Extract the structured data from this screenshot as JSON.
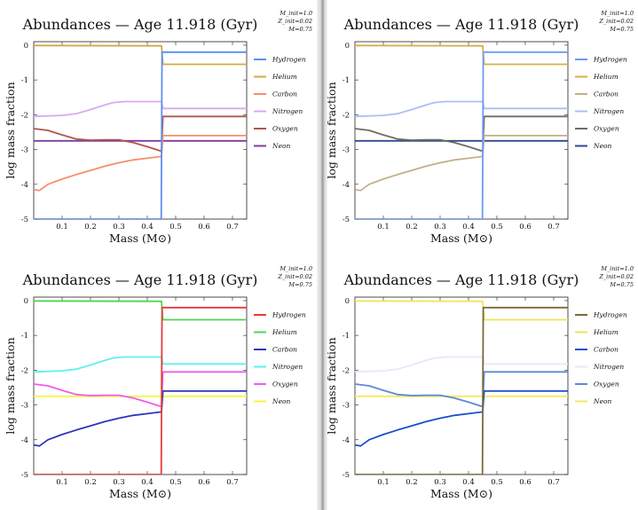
{
  "chart_data": [
    {
      "type": "line",
      "title": "Abundances — Age 11.918 (Gyr)",
      "xlabel": "Mass (M⊙)",
      "ylabel": "log mass fraction",
      "xlim": [
        0,
        0.75
      ],
      "ylim": [
        -5,
        0.1
      ],
      "xticks": [
        "0.1",
        "0.2",
        "0.3",
        "0.4",
        "0.5",
        "0.6",
        "0.7"
      ],
      "yticks": [
        "0",
        "-1",
        "-2",
        "-3",
        "-4",
        "-5"
      ],
      "meta": [
        "M_init=1.0",
        "Z_init=0.02",
        "M=0.75"
      ],
      "legend_position": "right",
      "series": [
        {
          "name": "Hydrogen",
          "color": "#5b8ff0"
        },
        {
          "name": "Helium",
          "color": "#d4a845"
        },
        {
          "name": "Carbon",
          "color": "#f4906c"
        },
        {
          "name": "Nitrogen",
          "color": "#d9a9f5"
        },
        {
          "name": "Oxygen",
          "color": "#b0554f"
        },
        {
          "name": "Neon",
          "color": "#7e3d9e"
        }
      ]
    },
    {
      "type": "line",
      "title": "Abundances — Age 11.918 (Gyr)",
      "xlabel": "Mass (M⊙)",
      "ylabel": "log mass fraction",
      "xlim": [
        0,
        0.75
      ],
      "ylim": [
        -5,
        0.1
      ],
      "xticks": [
        "0.1",
        "0.2",
        "0.3",
        "0.4",
        "0.5",
        "0.6",
        "0.7"
      ],
      "yticks": [
        "0",
        "-1",
        "-2",
        "-3",
        "-4",
        "-5"
      ],
      "meta": [
        "M_init=1.0",
        "Z_init=0.02",
        "M=0.75"
      ],
      "legend_position": "right",
      "series": [
        {
          "name": "Hydrogen",
          "color": "#6d9af2"
        },
        {
          "name": "Helium",
          "color": "#d6ae4a"
        },
        {
          "name": "Carbon",
          "color": "#c2b08a"
        },
        {
          "name": "Nitrogen",
          "color": "#aebef5"
        },
        {
          "name": "Oxygen",
          "color": "#6e6c63"
        },
        {
          "name": "Neon",
          "color": "#2f4a8f"
        }
      ]
    },
    {
      "type": "line",
      "title": "Abundances — Age 11.918 (Gyr)",
      "xlabel": "Mass (M⊙)",
      "ylabel": "log mass fraction",
      "xlim": [
        0,
        0.75
      ],
      "ylim": [
        -5,
        0.1
      ],
      "xticks": [
        "0.1",
        "0.2",
        "0.3",
        "0.4",
        "0.5",
        "0.6",
        "0.7"
      ],
      "yticks": [
        "0",
        "-1",
        "-2",
        "-3",
        "-4",
        "-5"
      ],
      "meta": [
        "M_init=1.0",
        "Z_init=0.02",
        "M=0.75"
      ],
      "legend_position": "right",
      "series": [
        {
          "name": "Hydrogen",
          "color": "#e83a3a"
        },
        {
          "name": "Helium",
          "color": "#4ed64e"
        },
        {
          "name": "Carbon",
          "color": "#2f35b8"
        },
        {
          "name": "Nitrogen",
          "color": "#5ff0f0"
        },
        {
          "name": "Oxygen",
          "color": "#f05cf0"
        },
        {
          "name": "Neon",
          "color": "#f5f545"
        }
      ]
    },
    {
      "type": "line",
      "title": "Abundances — Age 11.918 (Gyr)",
      "xlabel": "Mass (M⊙)",
      "ylabel": "log mass fraction",
      "xlim": [
        0,
        0.75
      ],
      "ylim": [
        -5,
        0.1
      ],
      "xticks": [
        "0.1",
        "0.2",
        "0.3",
        "0.4",
        "0.5",
        "0.6",
        "0.7"
      ],
      "yticks": [
        "0",
        "-1",
        "-2",
        "-3",
        "-4",
        "-5"
      ],
      "meta": [
        "M_init=1.0",
        "Z_init=0.02",
        "M=0.75"
      ],
      "legend_position": "right",
      "series": [
        {
          "name": "Hydrogen",
          "color": "#7a6a3a"
        },
        {
          "name": "Helium",
          "color": "#f2e25c"
        },
        {
          "name": "Carbon",
          "color": "#1a4fcc"
        },
        {
          "name": "Nitrogen",
          "color": "#e6e8f8"
        },
        {
          "name": "Oxygen",
          "color": "#5a8ad8"
        },
        {
          "name": "Neon",
          "color": "#f5ea60"
        }
      ]
    }
  ],
  "profiles": {
    "Hydrogen": [
      [
        0,
        -5.0
      ],
      [
        0.449,
        -5.0
      ],
      [
        0.452,
        -0.2
      ],
      [
        0.75,
        -0.2
      ]
    ],
    "Helium": [
      [
        0,
        -0.01
      ],
      [
        0.45,
        -0.02
      ],
      [
        0.455,
        -0.55
      ],
      [
        0.75,
        -0.55
      ]
    ],
    "Carbon": [
      [
        0.0,
        -4.15
      ],
      [
        0.02,
        -4.18
      ],
      [
        0.05,
        -4.0
      ],
      [
        0.1,
        -3.85
      ],
      [
        0.15,
        -3.72
      ],
      [
        0.2,
        -3.6
      ],
      [
        0.25,
        -3.48
      ],
      [
        0.3,
        -3.38
      ],
      [
        0.35,
        -3.3
      ],
      [
        0.4,
        -3.25
      ],
      [
        0.45,
        -3.2
      ],
      [
        0.455,
        -2.6
      ],
      [
        0.75,
        -2.6
      ]
    ],
    "Nitrogen": [
      [
        0.0,
        -2.05
      ],
      [
        0.1,
        -2.02
      ],
      [
        0.15,
        -1.97
      ],
      [
        0.2,
        -1.85
      ],
      [
        0.25,
        -1.72
      ],
      [
        0.28,
        -1.65
      ],
      [
        0.32,
        -1.62
      ],
      [
        0.45,
        -1.62
      ],
      [
        0.455,
        -1.82
      ],
      [
        0.75,
        -1.82
      ]
    ],
    "Oxygen": [
      [
        0.0,
        -2.4
      ],
      [
        0.05,
        -2.45
      ],
      [
        0.1,
        -2.58
      ],
      [
        0.15,
        -2.7
      ],
      [
        0.2,
        -2.73
      ],
      [
        0.25,
        -2.72
      ],
      [
        0.3,
        -2.72
      ],
      [
        0.35,
        -2.8
      ],
      [
        0.4,
        -2.92
      ],
      [
        0.45,
        -3.05
      ],
      [
        0.455,
        -2.05
      ],
      [
        0.75,
        -2.05
      ]
    ],
    "Neon": [
      [
        0,
        -2.75
      ],
      [
        0.75,
        -2.75
      ]
    ]
  }
}
